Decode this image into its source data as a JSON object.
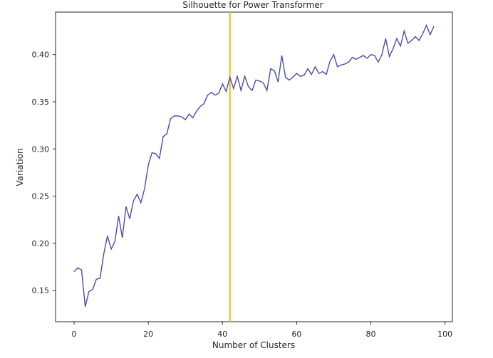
{
  "chart_data": {
    "type": "line",
    "title": "Silhouette for Power Transformer",
    "xlabel": "Number of Clusters",
    "ylabel": "Variation",
    "xlim": [
      -5,
      102
    ],
    "ylim": [
      0.117,
      0.445
    ],
    "xticks": [
      0,
      20,
      40,
      60,
      80,
      100
    ],
    "yticks": [
      0.15,
      0.2,
      0.25,
      0.3,
      0.35,
      0.4
    ],
    "ytick_labels": [
      "0.15",
      "0.20",
      "0.25",
      "0.30",
      "0.35",
      "0.40"
    ],
    "grid": false,
    "series": [
      {
        "color": "#4c4cad",
        "x": [
          0,
          1,
          2,
          3,
          4,
          5,
          6,
          7,
          8,
          9,
          10,
          11,
          12,
          13,
          14,
          15,
          16,
          17,
          18,
          19,
          20,
          21,
          22,
          23,
          24,
          25,
          26,
          27,
          28,
          29,
          30,
          31,
          32,
          33,
          34,
          35,
          36,
          37,
          38,
          39,
          40,
          41,
          42,
          43,
          44,
          45,
          46,
          47,
          48,
          49,
          50,
          51,
          52,
          53,
          54,
          55,
          56,
          57,
          58,
          59,
          60,
          61,
          62,
          63,
          64,
          65,
          66,
          67,
          68,
          69,
          70,
          71,
          72,
          73,
          74,
          75,
          76,
          77,
          78,
          79,
          80,
          81,
          82,
          83,
          84,
          85,
          86,
          87,
          88,
          89,
          90,
          91,
          92,
          93,
          94,
          95,
          96,
          97
        ],
        "y": [
          0.17,
          0.174,
          0.172,
          0.133,
          0.149,
          0.151,
          0.162,
          0.163,
          0.189,
          0.208,
          0.194,
          0.202,
          0.229,
          0.206,
          0.239,
          0.226,
          0.245,
          0.252,
          0.243,
          0.258,
          0.283,
          0.296,
          0.295,
          0.29,
          0.313,
          0.316,
          0.332,
          0.335,
          0.335,
          0.334,
          0.331,
          0.337,
          0.333,
          0.34,
          0.345,
          0.348,
          0.357,
          0.36,
          0.357,
          0.359,
          0.369,
          0.361,
          0.376,
          0.364,
          0.377,
          0.362,
          0.377,
          0.366,
          0.362,
          0.373,
          0.372,
          0.37,
          0.362,
          0.385,
          0.383,
          0.371,
          0.399,
          0.376,
          0.373,
          0.376,
          0.38,
          0.377,
          0.378,
          0.385,
          0.379,
          0.387,
          0.38,
          0.382,
          0.379,
          0.393,
          0.4,
          0.387,
          0.389,
          0.39,
          0.392,
          0.397,
          0.395,
          0.397,
          0.399,
          0.396,
          0.4,
          0.399,
          0.392,
          0.4,
          0.417,
          0.398,
          0.406,
          0.417,
          0.409,
          0.425,
          0.412,
          0.415,
          0.419,
          0.415,
          0.422,
          0.431,
          0.421,
          0.43
        ]
      }
    ],
    "vline": {
      "x": 42,
      "color": "#e6c200"
    }
  }
}
